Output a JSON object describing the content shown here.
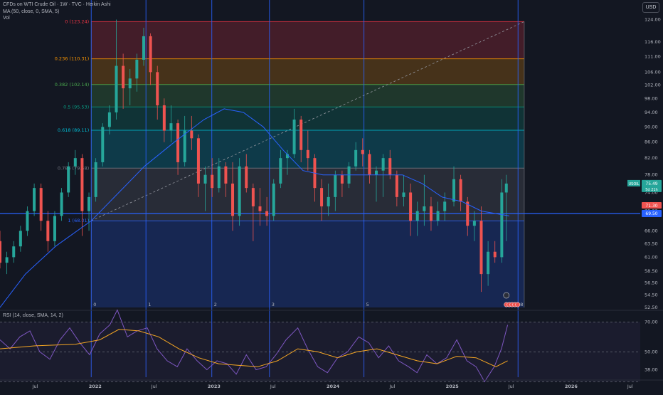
{
  "header": {
    "symbol_line": "CFDs on WTI Crude Oil · 1W · TVC · Heikin Ashi",
    "ma_line": "MA (50, close, 0, SMA, 5)",
    "vol_line": "Vol",
    "currency_button": "USD"
  },
  "colors": {
    "background": "#131722",
    "up": "#26a69a",
    "down": "#ef5350",
    "ma": "#2962ff",
    "rsi": "#7e57c2",
    "rsi_ma": "#f5a623",
    "hline": "#2962ff",
    "fib_0": "#f23645",
    "fib_0236": "#ff9800",
    "fib_0382": "#4caf50",
    "fib_05": "#089981",
    "fib_0618": "#00bcd4",
    "fib_0786": "#787b86",
    "fib_1": "#2962ff"
  },
  "chart_data": [
    {
      "type": "candlestick",
      "y_scale": "log",
      "ylim": [
        52.5,
        126
      ],
      "y_ticks": [
        "124.00",
        "116.00",
        "111.00",
        "106.00",
        "102.00",
        "98.00",
        "94.00",
        "90.00",
        "86.00",
        "82.00",
        "78.00",
        "74.00",
        "70.00",
        "66.00",
        "63.50",
        "61.00",
        "58.50",
        "56.50",
        "54.50",
        "52.50"
      ],
      "x_ticks": [
        "Jul",
        "2022",
        "Jul",
        "2023",
        "Jul",
        "2024",
        "Jul",
        "2025",
        "Jul",
        "2026",
        "Jul"
      ],
      "x_tick_dates": [
        "2021-07-01",
        "2022-01-01",
        "2022-07-01",
        "2023-01-01",
        "2023-07-01",
        "2024-01-01",
        "2024-07-01",
        "2025-01-01",
        "2025-07-01",
        "2026-01-01",
        "2026-07-01"
      ],
      "x_range": [
        "2021-03-15",
        "2026-08-01"
      ],
      "price_labels": {
        "symbol": "USOIL",
        "last": "75.49",
        "countdown": "5d 21h",
        "small": "71.30",
        "hline": "69.50"
      },
      "horizontal_line": 69.5,
      "fibonacci": {
        "start": "2021-12-20",
        "end": "2025-08-10",
        "levels": [
          {
            "ratio": "0",
            "label": "0 (123.24)",
            "price": 123.24
          },
          {
            "ratio": "0.236",
            "label": "0.236 (110.31)",
            "price": 110.31
          },
          {
            "ratio": "0.382",
            "label": "0.382 (102.14)",
            "price": 102.14
          },
          {
            "ratio": "0.5",
            "label": "0.5 (95.53)",
            "price": 95.53
          },
          {
            "ratio": "0.618",
            "label": "0.618 (89.11)",
            "price": 89.11
          },
          {
            "ratio": "0.786",
            "label": "0.786 (79.58)",
            "price": 79.58
          },
          {
            "ratio": "1",
            "label": "1 (68.01)",
            "price": 68.01
          }
        ]
      },
      "trendline": {
        "from": [
          "2021-12-20",
          68.01
        ],
        "to": [
          "2025-08-10",
          123.24
        ]
      },
      "time_cycles": [
        {
          "label": "0",
          "date": "2021-12-20"
        },
        {
          "label": "1",
          "date": "2022-06-06"
        },
        {
          "label": "2",
          "date": "2022-12-25"
        },
        {
          "label": "3",
          "date": "2023-06-20"
        },
        {
          "label": "5",
          "date": "2024-04-05"
        },
        {
          "label": "8",
          "date": "2025-07-22"
        }
      ],
      "ohlc": [
        [
          "2021-03-15",
          64,
          66,
          59,
          60
        ],
        [
          "2021-04-05",
          60,
          62,
          58,
          61
        ],
        [
          "2021-04-26",
          61,
          64,
          60,
          63
        ],
        [
          "2021-05-17",
          63,
          67,
          62,
          66
        ],
        [
          "2021-06-07",
          66,
          71,
          65,
          70
        ],
        [
          "2021-06-28",
          70,
          76,
          69,
          75
        ],
        [
          "2021-07-19",
          75,
          76,
          66,
          68
        ],
        [
          "2021-08-09",
          68,
          70,
          62,
          64
        ],
        [
          "2021-08-30",
          64,
          70,
          63,
          69
        ],
        [
          "2021-09-20",
          69,
          75,
          68,
          74
        ],
        [
          "2021-10-11",
          74,
          81,
          73,
          80
        ],
        [
          "2021-11-01",
          80,
          84,
          78,
          82
        ],
        [
          "2021-11-22",
          82,
          83,
          65,
          70
        ],
        [
          "2021-12-13",
          70,
          74,
          66,
          73
        ],
        [
          "2022-01-03",
          73,
          82,
          72,
          81
        ],
        [
          "2022-01-24",
          81,
          91,
          80,
          90
        ],
        [
          "2022-02-14",
          90,
          96,
          88,
          94
        ],
        [
          "2022-03-07",
          94,
          124,
          92,
          108
        ],
        [
          "2022-03-28",
          108,
          112,
          95,
          101
        ],
        [
          "2022-04-18",
          101,
          107,
          96,
          104
        ],
        [
          "2022-05-09",
          104,
          112,
          100,
          110
        ],
        [
          "2022-05-30",
          110,
          121,
          108,
          118
        ],
        [
          "2022-06-20",
          118,
          119,
          102,
          106
        ],
        [
          "2022-07-11",
          106,
          108,
          92,
          96
        ],
        [
          "2022-08-01",
          96,
          98,
          86,
          89
        ],
        [
          "2022-08-22",
          89,
          96,
          86,
          91
        ],
        [
          "2022-09-12",
          91,
          92,
          78,
          81
        ],
        [
          "2022-10-03",
          81,
          93,
          80,
          89
        ],
        [
          "2022-10-24",
          89,
          93,
          84,
          87
        ],
        [
          "2022-11-14",
          87,
          88,
          73,
          76
        ],
        [
          "2022-12-05",
          76,
          80,
          70,
          78
        ],
        [
          "2022-12-26",
          78,
          82,
          73,
          75
        ],
        [
          "2023-01-16",
          75,
          82,
          74,
          80
        ],
        [
          "2023-02-06",
          80,
          81,
          73,
          76
        ],
        [
          "2023-02-27",
          76,
          81,
          66,
          69
        ],
        [
          "2023-03-20",
          69,
          82,
          67,
          80
        ],
        [
          "2023-04-10",
          80,
          83,
          74,
          75
        ],
        [
          "2023-05-01",
          75,
          76,
          64,
          71
        ],
        [
          "2023-05-22",
          71,
          75,
          67,
          70
        ],
        [
          "2023-06-12",
          70,
          73,
          67,
          69
        ],
        [
          "2023-07-03",
          69,
          77,
          68,
          76
        ],
        [
          "2023-07-24",
          76,
          84,
          75,
          82
        ],
        [
          "2023-08-14",
          82,
          84,
          78,
          83
        ],
        [
          "2023-09-04",
          83,
          95,
          82,
          92
        ],
        [
          "2023-09-25",
          92,
          93,
          81,
          84
        ],
        [
          "2023-10-16",
          84,
          89,
          79,
          82
        ],
        [
          "2023-11-06",
          82,
          83,
          72,
          75
        ],
        [
          "2023-11-27",
          75,
          77,
          68,
          71
        ],
        [
          "2023-12-18",
          71,
          76,
          69,
          73
        ],
        [
          "2024-01-08",
          73,
          79,
          70,
          78
        ],
        [
          "2024-01-29",
          78,
          79,
          73,
          76
        ],
        [
          "2024-02-19",
          76,
          81,
          75,
          80
        ],
        [
          "2024-03-11",
          80,
          86,
          79,
          84
        ],
        [
          "2024-04-01",
          84,
          87,
          80,
          83
        ],
        [
          "2024-04-22",
          83,
          84,
          76,
          78
        ],
        [
          "2024-05-13",
          78,
          80,
          72,
          79
        ],
        [
          "2024-06-03",
          79,
          83,
          73,
          82
        ],
        [
          "2024-06-24",
          82,
          84,
          77,
          78
        ],
        [
          "2024-07-15",
          78,
          79,
          71,
          73
        ],
        [
          "2024-08-05",
          73,
          78,
          71,
          74
        ],
        [
          "2024-08-26",
          74,
          76,
          65,
          68
        ],
        [
          "2024-09-16",
          68,
          72,
          65,
          70
        ],
        [
          "2024-10-07",
          70,
          78,
          67,
          71
        ],
        [
          "2024-10-28",
          71,
          73,
          66,
          68
        ],
        [
          "2024-11-18",
          68,
          72,
          67,
          70
        ],
        [
          "2024-12-09",
          70,
          74,
          68,
          72
        ],
        [
          "2025-01-06",
          72,
          80,
          71,
          77
        ],
        [
          "2025-01-27",
          77,
          78,
          70,
          72
        ],
        [
          "2025-02-17",
          72,
          73,
          65,
          67
        ],
        [
          "2025-03-10",
          67,
          70,
          64,
          68
        ],
        [
          "2025-03-31",
          68,
          71,
          55,
          58
        ],
        [
          "2025-04-21",
          58,
          64,
          56,
          62
        ],
        [
          "2025-05-12",
          62,
          64,
          60,
          61
        ],
        [
          "2025-06-02",
          61,
          77,
          60,
          74
        ],
        [
          "2025-06-16",
          74,
          78,
          64,
          76
        ]
      ],
      "ma": [
        [
          "2021-03-15",
          52.5
        ],
        [
          "2021-06-01",
          58
        ],
        [
          "2021-09-01",
          63
        ],
        [
          "2021-12-20",
          68
        ],
        [
          "2022-03-01",
          73
        ],
        [
          "2022-06-01",
          80
        ],
        [
          "2022-09-01",
          86
        ],
        [
          "2022-12-01",
          92
        ],
        [
          "2023-02-01",
          95
        ],
        [
          "2023-04-01",
          94
        ],
        [
          "2023-06-01",
          90
        ],
        [
          "2023-08-01",
          84
        ],
        [
          "2023-10-01",
          79
        ],
        [
          "2023-12-01",
          78
        ],
        [
          "2024-02-01",
          78
        ],
        [
          "2024-04-01",
          78
        ],
        [
          "2024-06-01",
          78
        ],
        [
          "2024-08-01",
          78
        ],
        [
          "2024-10-01",
          76
        ],
        [
          "2024-12-01",
          73
        ],
        [
          "2025-02-01",
          72
        ],
        [
          "2025-04-01",
          70
        ],
        [
          "2025-06-25",
          69
        ]
      ]
    },
    {
      "type": "line",
      "title": "RSI (14, close, SMA, 14, 2)",
      "ylim": [
        33,
        73
      ],
      "y_ticks": [
        "70.00",
        "50.00",
        "38.00"
      ],
      "levels": [
        70,
        50,
        30
      ],
      "series": [
        {
          "values": [
            [
              "2021-03-15",
              58
            ],
            [
              "2021-04-15",
              52
            ],
            [
              "2021-05-15",
              60
            ],
            [
              "2021-06-15",
              64
            ],
            [
              "2021-07-15",
              50
            ],
            [
              "2021-08-15",
              45
            ],
            [
              "2021-09-15",
              58
            ],
            [
              "2021-10-15",
              66
            ],
            [
              "2021-11-15",
              56
            ],
            [
              "2021-12-15",
              48
            ],
            [
              "2022-01-15",
              62
            ],
            [
              "2022-02-15",
              68
            ],
            [
              "2022-03-10",
              78
            ],
            [
              "2022-04-10",
              60
            ],
            [
              "2022-05-10",
              64
            ],
            [
              "2022-06-10",
              66
            ],
            [
              "2022-07-10",
              52
            ],
            [
              "2022-08-10",
              44
            ],
            [
              "2022-09-10",
              40
            ],
            [
              "2022-10-10",
              52
            ],
            [
              "2022-11-10",
              44
            ],
            [
              "2022-12-10",
              38
            ],
            [
              "2023-01-10",
              44
            ],
            [
              "2023-02-10",
              42
            ],
            [
              "2023-03-10",
              35
            ],
            [
              "2023-04-10",
              48
            ],
            [
              "2023-05-10",
              38
            ],
            [
              "2023-06-10",
              40
            ],
            [
              "2023-07-10",
              48
            ],
            [
              "2023-08-10",
              58
            ],
            [
              "2023-09-15",
              66
            ],
            [
              "2023-10-15",
              52
            ],
            [
              "2023-11-15",
              40
            ],
            [
              "2023-12-15",
              36
            ],
            [
              "2024-01-15",
              46
            ],
            [
              "2024-02-15",
              50
            ],
            [
              "2024-03-20",
              60
            ],
            [
              "2024-04-20",
              56
            ],
            [
              "2024-05-20",
              46
            ],
            [
              "2024-06-20",
              54
            ],
            [
              "2024-07-20",
              44
            ],
            [
              "2024-08-20",
              40
            ],
            [
              "2024-09-15",
              36
            ],
            [
              "2024-10-15",
              48
            ],
            [
              "2024-11-15",
              42
            ],
            [
              "2024-12-15",
              46
            ],
            [
              "2025-01-15",
              58
            ],
            [
              "2025-02-15",
              44
            ],
            [
              "2025-03-15",
              40
            ],
            [
              "2025-04-10",
              30
            ],
            [
              "2025-05-10",
              40
            ],
            [
              "2025-06-01",
              52
            ],
            [
              "2025-06-20",
              68
            ]
          ]
        },
        {
          "values": [
            [
              "2021-03-15",
              52
            ],
            [
              "2021-07-01",
              54
            ],
            [
              "2021-11-01",
              55
            ],
            [
              "2022-01-15",
              58
            ],
            [
              "2022-03-15",
              65
            ],
            [
              "2022-05-15",
              64
            ],
            [
              "2022-07-15",
              60
            ],
            [
              "2022-09-15",
              52
            ],
            [
              "2022-11-15",
              46
            ],
            [
              "2023-01-15",
              42
            ],
            [
              "2023-03-15",
              41
            ],
            [
              "2023-05-15",
              40
            ],
            [
              "2023-07-15",
              44
            ],
            [
              "2023-09-15",
              52
            ],
            [
              "2023-11-15",
              50
            ],
            [
              "2024-01-15",
              46
            ],
            [
              "2024-03-15",
              50
            ],
            [
              "2024-05-15",
              52
            ],
            [
              "2024-07-15",
              48
            ],
            [
              "2024-09-15",
              44
            ],
            [
              "2024-11-15",
              42
            ],
            [
              "2025-01-15",
              47
            ],
            [
              "2025-03-15",
              46
            ],
            [
              "2025-05-15",
              40
            ],
            [
              "2025-06-20",
              44
            ]
          ]
        }
      ]
    }
  ]
}
